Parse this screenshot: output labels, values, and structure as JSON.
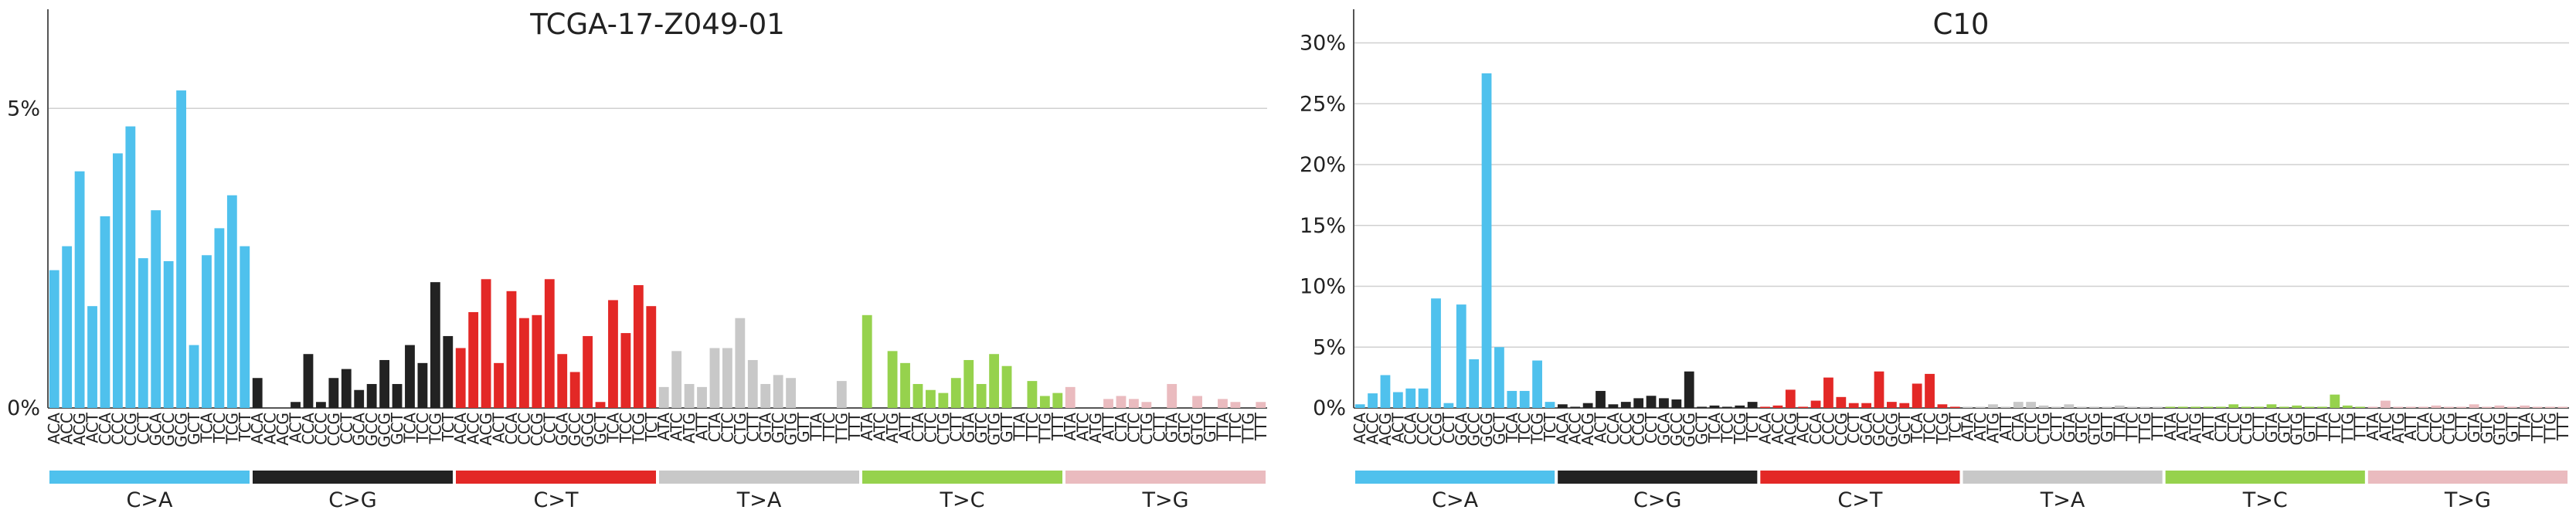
{
  "chart_data": [
    {
      "type": "bar",
      "title": "TCGA-17-Z049-01",
      "ylim": [
        0,
        6.5
      ],
      "yticks": [
        {
          "value": 0,
          "label": "0%"
        },
        {
          "value": 5,
          "label": "5%"
        }
      ],
      "grid": true,
      "mutation_types": [
        "C>A",
        "C>G",
        "C>T",
        "T>A",
        "T>C",
        "T>G"
      ],
      "type_colors": [
        "#4fc1ed",
        "#222222",
        "#e32826",
        "#c8c8c8",
        "#96d24d",
        "#eabbbf"
      ],
      "categories": [
        "ACA",
        "ACC",
        "ACG",
        "ACT",
        "CCA",
        "CCC",
        "CCG",
        "CCT",
        "GCA",
        "GCC",
        "GCG",
        "GCT",
        "TCA",
        "TCC",
        "TCG",
        "TCT",
        "ACA",
        "ACC",
        "ACG",
        "ACT",
        "CCA",
        "CCC",
        "CCG",
        "CCT",
        "GCA",
        "GCC",
        "GCG",
        "GCT",
        "TCA",
        "TCC",
        "TCG",
        "TCT",
        "ACA",
        "ACC",
        "ACG",
        "ACT",
        "CCA",
        "CCC",
        "CCG",
        "CCT",
        "GCA",
        "GCC",
        "GCG",
        "GCT",
        "TCA",
        "TCC",
        "TCG",
        "TCT",
        "ATA",
        "ATC",
        "ATG",
        "ATT",
        "CTA",
        "CTC",
        "CTG",
        "CTT",
        "GTA",
        "GTC",
        "GTG",
        "GTT",
        "TTA",
        "TTC",
        "TTG",
        "TTT",
        "ATA",
        "ATC",
        "ATG",
        "ATT",
        "CTA",
        "CTC",
        "CTG",
        "CTT",
        "GTA",
        "GTC",
        "GTG",
        "GTT",
        "TTA",
        "TTC",
        "TTG",
        "TTT",
        "ATA",
        "ATC",
        "ATG",
        "ATT",
        "CTA",
        "CTC",
        "CTG",
        "CTT",
        "GTA",
        "GTC",
        "GTG",
        "GTT",
        "TTA",
        "TTC",
        "TTG",
        "TTT"
      ],
      "values": [
        2.3,
        2.7,
        3.95,
        1.7,
        3.2,
        4.25,
        4.7,
        2.5,
        3.3,
        2.45,
        5.3,
        1.05,
        2.55,
        3.0,
        3.55,
        2.7,
        0.5,
        0,
        0,
        0.1,
        0.9,
        0.1,
        0.5,
        0.65,
        0.3,
        0.4,
        0.8,
        0.4,
        1.05,
        0.75,
        2.1,
        1.2,
        1.0,
        1.6,
        2.15,
        0.75,
        1.95,
        1.5,
        1.55,
        2.15,
        0.9,
        0.6,
        1.2,
        0.1,
        1.8,
        1.25,
        2.05,
        1.7,
        0.35,
        0.95,
        0.4,
        0.35,
        1.0,
        1.0,
        1.5,
        0.8,
        0.4,
        0.55,
        0.5,
        0,
        0,
        0,
        0.45,
        0,
        1.55,
        0,
        0.95,
        0.75,
        0.4,
        0.3,
        0.25,
        0.5,
        0.8,
        0.4,
        0.9,
        0.7,
        0,
        0.45,
        0.2,
        0.25,
        0.35,
        0,
        0,
        0.15,
        0.2,
        0.15,
        0.1,
        0,
        0.4,
        0,
        0.2,
        0,
        0.15,
        0.1,
        0,
        0.1
      ]
    },
    {
      "type": "bar",
      "title": "C10",
      "ylim": [
        0,
        32
      ],
      "yticks": [
        {
          "value": 0,
          "label": "0%"
        },
        {
          "value": 5,
          "label": "5%"
        },
        {
          "value": 10,
          "label": "10%"
        },
        {
          "value": 15,
          "label": "15%"
        },
        {
          "value": 20,
          "label": "20%"
        },
        {
          "value": 25,
          "label": "25%"
        },
        {
          "value": 30,
          "label": "30%"
        }
      ],
      "grid": true,
      "mutation_types": [
        "C>A",
        "C>G",
        "C>T",
        "T>A",
        "T>C",
        "T>G"
      ],
      "type_colors": [
        "#4fc1ed",
        "#222222",
        "#e32826",
        "#c8c8c8",
        "#96d24d",
        "#eabbbf"
      ],
      "categories": [
        "ACA",
        "ACC",
        "ACG",
        "ACT",
        "CCA",
        "CCC",
        "CCG",
        "CCT",
        "GCA",
        "GCC",
        "GCG",
        "GCT",
        "TCA",
        "TCC",
        "TCG",
        "TCT",
        "ACA",
        "ACC",
        "ACG",
        "ACT",
        "CCA",
        "CCC",
        "CCG",
        "CCT",
        "GCA",
        "GCC",
        "GCG",
        "GCT",
        "TCA",
        "TCC",
        "TCG",
        "TCT",
        "ACA",
        "ACC",
        "ACG",
        "ACT",
        "CCA",
        "CCC",
        "CCG",
        "CCT",
        "GCA",
        "GCC",
        "GCG",
        "GCT",
        "TCA",
        "TCC",
        "TCG",
        "TCT",
        "ATA",
        "ATC",
        "ATG",
        "ATT",
        "CTA",
        "CTC",
        "CTG",
        "CTT",
        "GTA",
        "GTC",
        "GTG",
        "GTT",
        "TTA",
        "TTC",
        "TTG",
        "TTT",
        "ATA",
        "ATC",
        "ATG",
        "ATT",
        "CTA",
        "CTC",
        "CTG",
        "CTT",
        "GTA",
        "GTC",
        "GTG",
        "GTT",
        "TTA",
        "TTC",
        "TTG",
        "TTT",
        "ATA",
        "ATC",
        "ATG",
        "ATT",
        "CTA",
        "CTC",
        "CTG",
        "CTT",
        "GTA",
        "GTC",
        "GTG",
        "GTT",
        "TTA",
        "TTC",
        "TTG",
        "TTT"
      ],
      "values": [
        0.3,
        1.2,
        2.7,
        1.3,
        1.6,
        1.6,
        9.0,
        0.4,
        8.5,
        4.0,
        27.5,
        5.0,
        1.4,
        1.4,
        3.9,
        0.5,
        0.3,
        0.1,
        0.4,
        1.4,
        0.3,
        0.5,
        0.8,
        1.0,
        0.8,
        0.7,
        3.0,
        0.1,
        0.2,
        0.1,
        0.2,
        0.5,
        0.1,
        0.2,
        1.5,
        0.1,
        0.6,
        2.5,
        0.9,
        0.4,
        0.4,
        3.0,
        0.5,
        0.4,
        2.0,
        2.8,
        0.3,
        0.1,
        0.1,
        0.1,
        0.3,
        0.1,
        0.5,
        0.5,
        0.2,
        0.1,
        0.3,
        0.1,
        0.1,
        0.1,
        0.2,
        0.1,
        0.1,
        0.1,
        0.1,
        0.1,
        0.1,
        0.1,
        0.1,
        0.3,
        0.1,
        0.1,
        0.3,
        0.1,
        0.2,
        0.1,
        0.1,
        1.1,
        0.2,
        0.1,
        0.1,
        0.6,
        0.1,
        0.1,
        0.1,
        0.2,
        0.1,
        0.1,
        0.3,
        0.1,
        0.2,
        0.1,
        0.2,
        0.1,
        0.1,
        0.1
      ]
    }
  ]
}
